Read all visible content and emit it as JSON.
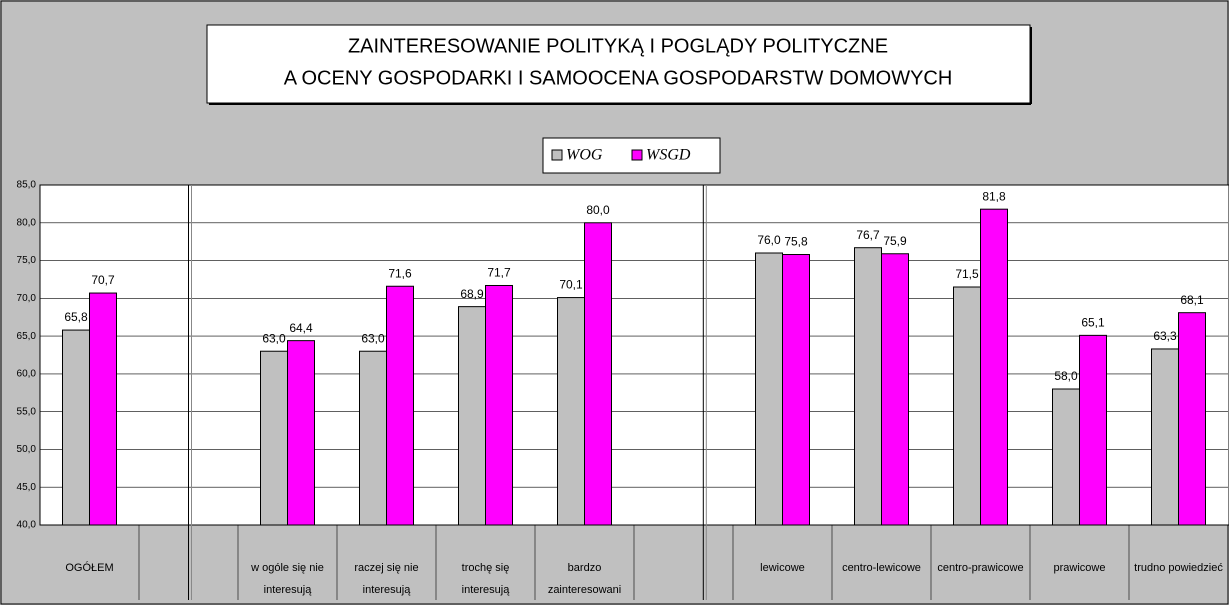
{
  "chart_data": {
    "type": "bar",
    "title": [
      "ZAINTERESOWANIE POLITYKĄ I POGLĄDY POLITYCZNE",
      "A OCENY GOSPODARKI I SAMOOCENA GOSPODARSTW DOMOWYCH"
    ],
    "categories": [
      "OGÓŁEM",
      null,
      "w ogóle się nie interesują",
      "raczej się nie interesują",
      "trochę się interesują",
      "bardzo zainteresowani",
      null,
      "lewicowe",
      "centro-lewicowe",
      "centro-prawicowe",
      "prawicowe",
      "trudno powiedzieć"
    ],
    "series": [
      {
        "name": "WOG",
        "color": "#c0c0c0",
        "values": [
          65.8,
          null,
          63.0,
          63.0,
          68.9,
          70.1,
          null,
          76.0,
          76.7,
          71.5,
          58.0,
          63.3
        ],
        "value_labels": [
          "65,8",
          null,
          "63,0",
          "63,0",
          "68,9",
          "70,1",
          null,
          "76,0",
          "76,7",
          "71,5",
          "58,0",
          "63,3"
        ]
      },
      {
        "name": "WSGD",
        "color": "#ff00ff",
        "values": [
          70.7,
          null,
          64.4,
          71.6,
          71.7,
          80.0,
          null,
          75.8,
          75.9,
          81.8,
          65.1,
          68.1
        ],
        "value_labels": [
          "70,7",
          null,
          "64,4",
          "71,6",
          "71,7",
          "80,0",
          null,
          "75,8",
          "75,9",
          "81,8",
          "65,1",
          "68,1"
        ]
      }
    ],
    "ylim": [
      40,
      85
    ],
    "yticks": [
      {
        "value": 40,
        "label": "40,0"
      },
      {
        "value": 45,
        "label": "45,0"
      },
      {
        "value": 50,
        "label": "50,0"
      },
      {
        "value": 55,
        "label": "55,0"
      },
      {
        "value": 60,
        "label": "60,0"
      },
      {
        "value": 65,
        "label": "65,0"
      },
      {
        "value": 70,
        "label": "70,0"
      },
      {
        "value": 75,
        "label": "75,0"
      },
      {
        "value": 80,
        "label": "80,0"
      },
      {
        "value": 85,
        "label": "85,0"
      }
    ],
    "grid": true
  }
}
